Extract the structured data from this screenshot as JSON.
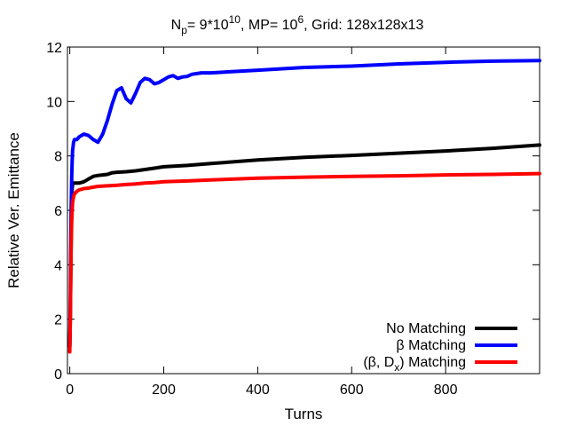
{
  "chart_data": {
    "type": "line",
    "title": {
      "np_main": "N",
      "np_sub": "p",
      "np_value": "= 9*10",
      "np_exp": "10",
      "mp_value": ", MP= 10",
      "mp_exp": "6",
      "grid": ", Grid: 128x128x13"
    },
    "xlabel": "Turns",
    "ylabel": "Relative Ver. Emittance",
    "xlim": [
      -5,
      1000
    ],
    "ylim": [
      0,
      12
    ],
    "xticks": [
      "0",
      "200",
      "400",
      "600",
      "800"
    ],
    "xtick_values": [
      0,
      200,
      400,
      600,
      800
    ],
    "yticks": [
      "0",
      "2",
      "4",
      "6",
      "8",
      "10",
      "12"
    ],
    "ytick_values": [
      0,
      2,
      4,
      6,
      8,
      10,
      12
    ],
    "legend_position": "bottom-right",
    "series": [
      {
        "name": "No Matching",
        "legend_parts": {
          "main": "No Matching"
        },
        "color": "#000000",
        "x": [
          0,
          1,
          2,
          3,
          4,
          5,
          6,
          8,
          10,
          15,
          20,
          30,
          40,
          50,
          60,
          70,
          80,
          90,
          100,
          120,
          140,
          160,
          180,
          200,
          250,
          300,
          400,
          500,
          600,
          700,
          800,
          900,
          1000
        ],
        "y": [
          1.0,
          2.0,
          3.5,
          5.0,
          6.2,
          6.8,
          7.0,
          7.0,
          7.0,
          7.0,
          7.0,
          7.05,
          7.15,
          7.25,
          7.28,
          7.3,
          7.32,
          7.38,
          7.4,
          7.42,
          7.45,
          7.5,
          7.55,
          7.6,
          7.65,
          7.72,
          7.85,
          7.95,
          8.02,
          8.1,
          8.18,
          8.28,
          8.4
        ]
      },
      {
        "name": "β Matching",
        "legend_parts": {
          "main": "β Matching"
        },
        "color": "#0000ff",
        "x": [
          0,
          1,
          2,
          3,
          4,
          5,
          6,
          8,
          10,
          15,
          20,
          30,
          40,
          50,
          60,
          70,
          80,
          90,
          100,
          110,
          120,
          130,
          140,
          150,
          160,
          170,
          180,
          190,
          200,
          210,
          220,
          230,
          240,
          250,
          260,
          280,
          300,
          400,
          500,
          600,
          700,
          800,
          900,
          1000
        ],
        "y": [
          1.0,
          2.5,
          4.5,
          6.0,
          7.2,
          7.8,
          8.2,
          8.5,
          8.6,
          8.6,
          8.7,
          8.8,
          8.75,
          8.6,
          8.5,
          8.8,
          9.3,
          9.9,
          10.4,
          10.5,
          10.1,
          9.95,
          10.3,
          10.7,
          10.85,
          10.8,
          10.65,
          10.7,
          10.8,
          10.9,
          10.95,
          10.85,
          10.9,
          10.92,
          11.0,
          11.05,
          11.05,
          11.15,
          11.25,
          11.3,
          11.38,
          11.44,
          11.48,
          11.5
        ]
      },
      {
        "name": "(β, Dx) Matching",
        "legend_parts": {
          "main": "(β, D",
          "sub": "x",
          "tail": ") Matching"
        },
        "color": "#ff0000",
        "x": [
          0,
          1,
          2,
          3,
          4,
          5,
          6,
          8,
          10,
          15,
          20,
          30,
          40,
          50,
          60,
          80,
          100,
          120,
          140,
          160,
          180,
          200,
          250,
          300,
          400,
          500,
          600,
          700,
          800,
          900,
          1000
        ],
        "y": [
          0.8,
          2.0,
          3.5,
          4.8,
          5.6,
          6.0,
          6.3,
          6.5,
          6.6,
          6.7,
          6.75,
          6.8,
          6.82,
          6.85,
          6.88,
          6.9,
          6.92,
          6.95,
          6.97,
          7.0,
          7.02,
          7.05,
          7.08,
          7.12,
          7.18,
          7.22,
          7.25,
          7.27,
          7.3,
          7.32,
          7.35
        ]
      }
    ]
  }
}
